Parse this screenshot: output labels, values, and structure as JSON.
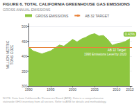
{
  "chart_data": {
    "type": "area",
    "title": "FIGURE 6. TOTAL CALIFORNIA GREENHOUSE GAS EMISSIONS",
    "subtitle": "GROSS ANNUAL EMISSIONS",
    "ylabel": "MILLION METRIC\nTONS CO2E",
    "x": [
      1990,
      1991,
      1992,
      1993,
      1994,
      1995,
      1996,
      1997,
      1998,
      1999,
      2000,
      2001,
      2002,
      2003,
      2004,
      2005,
      2006,
      2007,
      2008,
      2009,
      2010,
      2011,
      2012,
      2013
    ],
    "series": [
      {
        "name": "GROSS EMISSIONS",
        "color": "#8dc63f",
        "values": [
          431,
          418,
          413,
          408,
          413,
          418,
          428,
          438,
          434,
          445,
          457,
          448,
          458,
          464,
          472,
          476,
          468,
          470,
          456,
          437,
          442,
          445,
          450,
          459
        ]
      }
    ],
    "target_line": {
      "name": "AB 32 TARGET",
      "value": 431,
      "color": "#e8833a",
      "annotation": "AB 32 Target:\n1990 Emissions Level by 2020"
    },
    "annotations": [
      {
        "text": "0.43%",
        "x": 2013,
        "y": 459
      }
    ],
    "footnote": "NOTE: Data from California Air Resources Board (ARB). Data is a comprehensive statewide GHG inventory from all sectors. Refer to ARB for details and methodology.",
    "xlim": [
      1990,
      2013.5
    ],
    "xticks": [
      1990,
      1995,
      2000,
      2005,
      2010,
      2013
    ],
    "ylim": [
      300,
      510
    ],
    "yticks": [
      300,
      350,
      400,
      450,
      500
    ],
    "grid": true,
    "legend": "upper left"
  }
}
